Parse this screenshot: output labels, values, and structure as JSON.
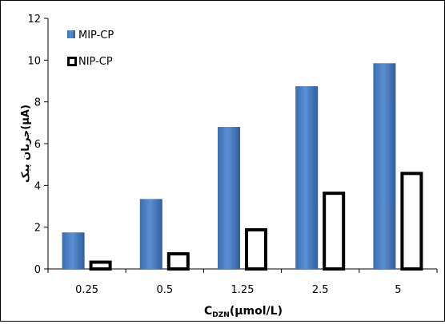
{
  "chart_data": {
    "type": "bar",
    "categories": [
      "0.25",
      "0.5",
      "1.25",
      "2.5",
      "5"
    ],
    "series": [
      {
        "name": "MIP-CP",
        "values": [
          1.75,
          3.35,
          6.8,
          8.75,
          9.85
        ],
        "color": "#4a7ebb"
      },
      {
        "name": "NIP-CP",
        "values": [
          0.4,
          0.8,
          1.95,
          3.7,
          4.65
        ],
        "color": "#ffffff"
      }
    ],
    "ylim": [
      0,
      12
    ],
    "yticks": [
      0,
      2,
      4,
      6,
      8,
      10,
      12
    ],
    "xlabel_main": "C",
    "xlabel_sub": "DZN",
    "xlabel_unit": "(µmol/L)",
    "ylabel": "جریان پیک(µA)",
    "legend_position": "top-left",
    "grid": false
  }
}
